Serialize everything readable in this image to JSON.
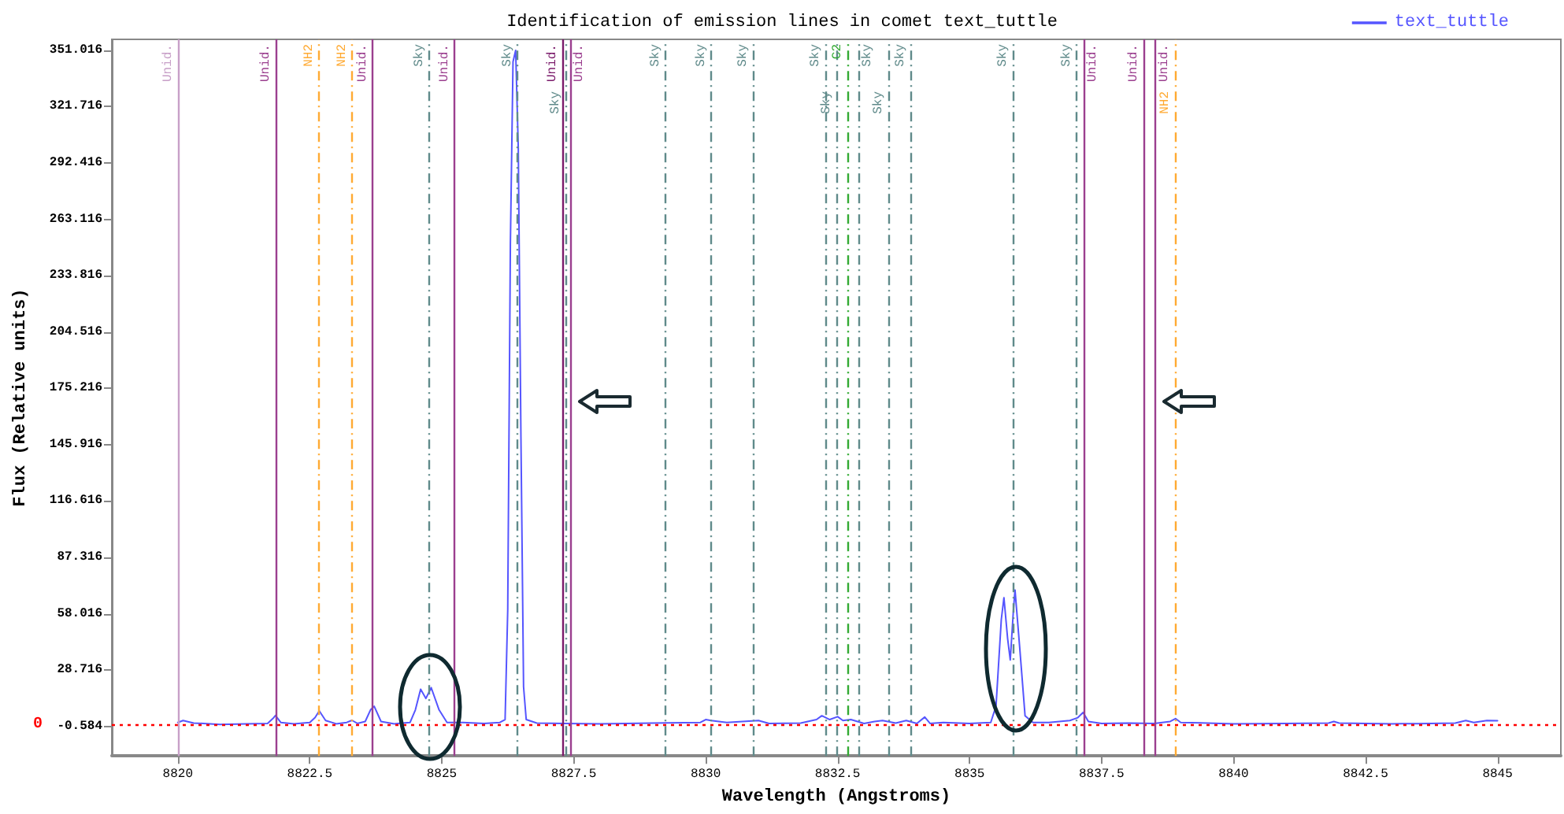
{
  "chart_data": {
    "type": "line",
    "title": "Identification of emission lines in comet text_tuttle",
    "xlabel": "Wavelength (Angstroms)",
    "ylabel": "Flux (Relative units)",
    "xlim": [
      8818.75,
      8846.2
    ],
    "xticks": [
      8820,
      8822.5,
      8825,
      8827.5,
      8830,
      8832.5,
      8835,
      8837.5,
      8840,
      8842.5,
      8845
    ],
    "ylim": [
      -15.9,
      356.7
    ],
    "yticks": [
      -0.584,
      28.716,
      58.016,
      87.316,
      116.616,
      145.916,
      175.216,
      204.516,
      233.816,
      263.116,
      292.416,
      321.716,
      351.016
    ],
    "grid": false,
    "legend": "top right",
    "marker": "none",
    "line_style": "solid",
    "series": [
      {
        "name": "text_tuttle",
        "color": "#5555ff",
        "x": [
          8820.0,
          8820.1,
          8820.3,
          8820.8,
          8821.3,
          8821.7,
          8821.8,
          8821.85,
          8821.95,
          8822.2,
          8822.5,
          8822.6,
          8822.68,
          8822.8,
          8823.0,
          8823.2,
          8823.3,
          8823.4,
          8823.55,
          8823.65,
          8823.72,
          8823.85,
          8824.1,
          8824.4,
          8824.5,
          8824.6,
          8824.7,
          8824.8,
          8824.95,
          8825.1,
          8825.4,
          8825.8,
          8826.1,
          8826.2,
          8826.25,
          8826.3,
          8826.35,
          8826.4,
          8826.45,
          8826.5,
          8826.55,
          8826.6,
          8826.8,
          8827.3,
          8828,
          8829,
          8829.9,
          8830.0,
          8830.1,
          8830.4,
          8831.0,
          8831.2,
          8831.8,
          8832.1,
          8832.2,
          8832.35,
          8832.5,
          8832.6,
          8832.75,
          8833.0,
          8833.2,
          8833.35,
          8833.6,
          8833.8,
          8834.0,
          8834.15,
          8834.25,
          8834.5,
          8835.0,
          8835.4,
          8835.5,
          8835.6,
          8835.65,
          8835.72,
          8835.77,
          8835.83,
          8835.86,
          8835.95,
          8836.05,
          8836.2,
          8836.5,
          8836.9,
          8837.05,
          8837.15,
          8837.25,
          8837.5,
          8838.0,
          8838.5,
          8838.8,
          8838.9,
          8839.0,
          8839.5,
          8840,
          8841,
          8841.8,
          8841.9,
          8842.0,
          8842.5,
          8843,
          8843.5,
          8844.2,
          8844.4,
          8844.55,
          8844.8,
          8845
        ],
        "values": [
          1.5,
          2.5,
          1.2,
          0.5,
          0.8,
          1.0,
          3.5,
          5.1,
          1.5,
          0.8,
          1.5,
          4,
          7.5,
          2.5,
          0.8,
          1.5,
          2.6,
          1.0,
          2,
          8,
          9.9,
          2,
          0.8,
          1.5,
          8,
          18.8,
          14,
          19.6,
          8,
          1.5,
          1.5,
          1,
          1.5,
          3,
          60,
          250,
          345,
          351,
          300,
          150,
          20,
          3,
          1.2,
          1,
          0.8,
          1.2,
          1.5,
          3,
          2.5,
          1.5,
          2.5,
          1.0,
          1.2,
          3,
          5,
          3,
          4.5,
          2.5,
          3,
          1.0,
          2,
          2.5,
          1.2,
          2.5,
          1,
          4.3,
          1.0,
          1.5,
          1,
          1.5,
          10,
          55,
          66.4,
          45,
          34,
          60,
          70.4,
          40,
          5,
          1.5,
          1.5,
          2.5,
          4,
          6.7,
          2,
          1,
          1.2,
          1.0,
          2,
          3.5,
          1.5,
          1.2,
          0.8,
          1,
          1.2,
          2,
          1.2,
          1,
          0.8,
          0.9,
          1.2,
          2.5,
          1.5,
          2.5,
          2.4
        ]
      }
    ],
    "ref_lines": [
      {
        "axis": "y",
        "value": 0,
        "label": "0",
        "color": "#ff0000",
        "line_style": "dotted"
      },
      {
        "axis": "x",
        "value": 8820.0,
        "label": "Unid.",
        "color": "#c8a0c8",
        "line_style": "solid"
      },
      {
        "axis": "x",
        "value": 8821.85,
        "label": "Unid.",
        "color": "#9b3f8f",
        "line_style": "solid"
      },
      {
        "axis": "x",
        "value": 8822.68,
        "label": "NH2",
        "color": "#ffaa33",
        "line_style": "dashed"
      },
      {
        "axis": "x",
        "value": 8823.3,
        "label": "NH2",
        "color": "#ffaa33",
        "line_style": "dashed"
      },
      {
        "axis": "x",
        "value": 8823.69,
        "label": "Unid.",
        "color": "#9b3f8f",
        "line_style": "solid"
      },
      {
        "axis": "x",
        "value": 8824.76,
        "label": "Sky",
        "color": "#5f8a8a",
        "line_style": "dashed"
      },
      {
        "axis": "x",
        "value": 8825.24,
        "label": "Unid.",
        "color": "#9b3f8f",
        "line_style": "solid"
      },
      {
        "axis": "x",
        "value": 8826.43,
        "label": "Sky",
        "color": "#5f8a8a",
        "line_style": "dashed"
      },
      {
        "axis": "x",
        "value": 8827.29,
        "label": "Unid.",
        "color": "#7a1a6a",
        "line_style": "solid"
      },
      {
        "axis": "x",
        "value": 8827.35,
        "label": "Sky",
        "color": "#5f8a8a",
        "line_style": "dashed"
      },
      {
        "axis": "x",
        "value": 8827.44,
        "label": "Unid.",
        "color": "#9b3f8f",
        "line_style": "solid"
      },
      {
        "axis": "x",
        "value": 8829.24,
        "label": "Sky",
        "color": "#5f8a8a",
        "line_style": "dashed"
      },
      {
        "axis": "x",
        "value": 8830.1,
        "label": "Sky",
        "color": "#5f8a8a",
        "line_style": "dashed"
      },
      {
        "axis": "x",
        "value": 8830.9,
        "label": "Sky",
        "color": "#5f8a8a",
        "line_style": "dashed"
      },
      {
        "axis": "x",
        "value": 8832.27,
        "label": "Sky",
        "color": "#5f8a8a",
        "line_style": "dashed"
      },
      {
        "axis": "x",
        "value": 8832.47,
        "label": "Sky",
        "color": "#5f8a8a",
        "line_style": "dashed"
      },
      {
        "axis": "x",
        "value": 8832.69,
        "label": "C2",
        "color": "#33aa33",
        "line_style": "dashed"
      },
      {
        "axis": "x",
        "value": 8832.9,
        "label": "Sky",
        "color": "#5f8a8a",
        "line_style": "dashed"
      },
      {
        "axis": "x",
        "value": 8833.46,
        "label": "Sky",
        "color": "#5f8a8a",
        "line_style": "dashed"
      },
      {
        "axis": "x",
        "value": 8833.88,
        "label": "Sky",
        "color": "#5f8a8a",
        "line_style": "dashed"
      },
      {
        "axis": "x",
        "value": 8835.81,
        "label": "Sky",
        "color": "#5f8a8a",
        "line_style": "dashed"
      },
      {
        "axis": "x",
        "value": 8837.03,
        "label": "Sky",
        "color": "#5f8a8a",
        "line_style": "dashed"
      },
      {
        "axis": "x",
        "value": 8837.16,
        "label": "Unid.",
        "color": "#9b3f8f",
        "line_style": "solid"
      },
      {
        "axis": "x",
        "value": 8838.3,
        "label": "Unid.",
        "color": "#9b3f8f",
        "line_style": "solid"
      },
      {
        "axis": "x",
        "value": 8838.52,
        "label": "Unid.",
        "color": "#9b3f8f",
        "line_style": "solid"
      },
      {
        "axis": "x",
        "value": 8838.89,
        "label": "NH2",
        "color": "#ffaa33",
        "line_style": "dashed"
      }
    ]
  }
}
